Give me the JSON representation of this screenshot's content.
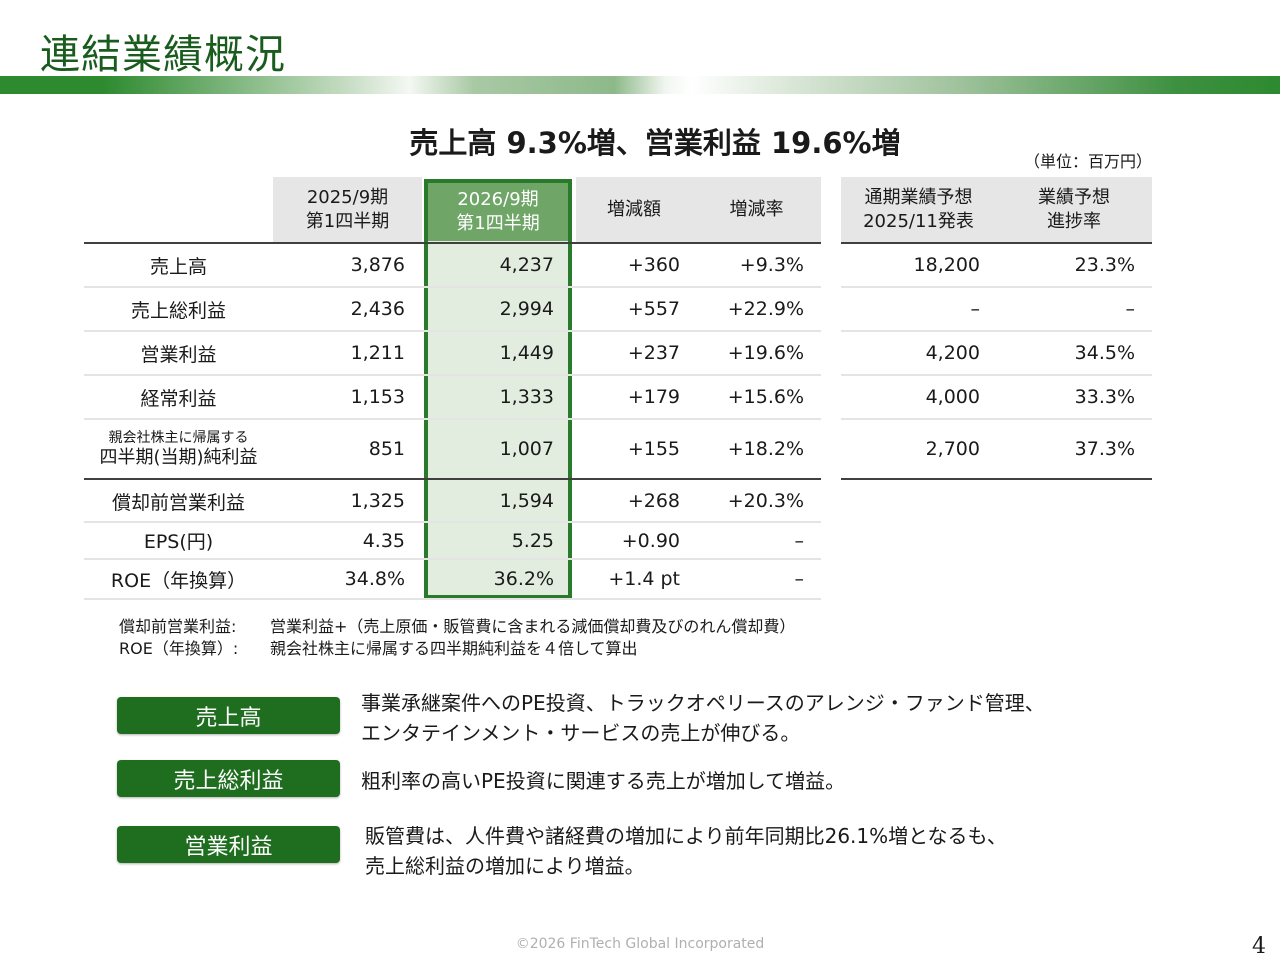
{
  "title": "連結業績概況",
  "headline": "売上高 9.3%増、営業利益 19.6%増",
  "unit": "（単位：百万円）",
  "table": {
    "headers": [
      "2025/9期\n第1四半期",
      "2026/9期\n第1四半期",
      "増減額",
      "増減率"
    ],
    "forecast_headers": [
      "通期業績予想\n2025/11発表",
      "業績予想\n進捗率"
    ],
    "rows": [
      {
        "label": "売上高",
        "prev": "3,876",
        "curr": "4,237",
        "diff": "+360",
        "rate": "+9.3%",
        "forecast": "18,200",
        "progress": "23.3%"
      },
      {
        "label": "売上総利益",
        "prev": "2,436",
        "curr": "2,994",
        "diff": "+557",
        "rate": "+22.9%",
        "forecast": "–",
        "progress": "–"
      },
      {
        "label": "営業利益",
        "prev": "1,211",
        "curr": "1,449",
        "diff": "+237",
        "rate": "+19.6%",
        "forecast": "4,200",
        "progress": "34.5%"
      },
      {
        "label": "経常利益",
        "prev": "1,153",
        "curr": "1,333",
        "diff": "+179",
        "rate": "+15.6%",
        "forecast": "4,000",
        "progress": "33.3%"
      },
      {
        "label_small": "親会社株主に帰属する",
        "label": "四半期(当期)純利益",
        "prev": "851",
        "curr": "1,007",
        "diff": "+155",
        "rate": "+18.2%",
        "forecast": "2,700",
        "progress": "37.3%"
      },
      {
        "label": "償却前営業利益",
        "prev": "1,325",
        "curr": "1,594",
        "diff": "+268",
        "rate": "+20.3%"
      },
      {
        "label": "EPS(円)",
        "prev": "4.35",
        "curr": "5.25",
        "diff": "+0.90",
        "rate": "–"
      },
      {
        "label": "ROE（年換算）",
        "prev": "34.8%",
        "curr": "36.2%",
        "diff": "+1.4 pt",
        "rate": "–"
      }
    ]
  },
  "notes": [
    {
      "term": "償却前営業利益:",
      "text": "営業利益+（売上原価・販管費に含まれる減価償却費及びのれん償却費）"
    },
    {
      "term": "ROE（年換算）:",
      "text": "親会社株主に帰属する四半期純利益を４倍して算出"
    }
  ],
  "highlights": [
    {
      "label": "売上高",
      "lines": [
        "事業承継案件へのPE投資、トラックオペリースのアレンジ・ファンド管理、",
        "エンタテインメント・サービスの売上が伸びる。"
      ]
    },
    {
      "label": "売上総利益",
      "lines": [
        "粗利率の高いPE投資に関連する売上が増加して増益。"
      ]
    },
    {
      "label": "営業利益",
      "lines": [
        "販管費は、人件費や諸経費の増加により前年同期比26.1%増となるも、",
        "売上総利益の増加により増益。"
      ]
    }
  ],
  "footer": "©2026 FinTech Global Incorporated",
  "page_number": "4",
  "colors": {
    "brand_green": "#1f6e1f",
    "highlight_border": "#2a7a2c",
    "highlight_header": "#6fa668",
    "highlight_fill": "#e2eddf"
  }
}
